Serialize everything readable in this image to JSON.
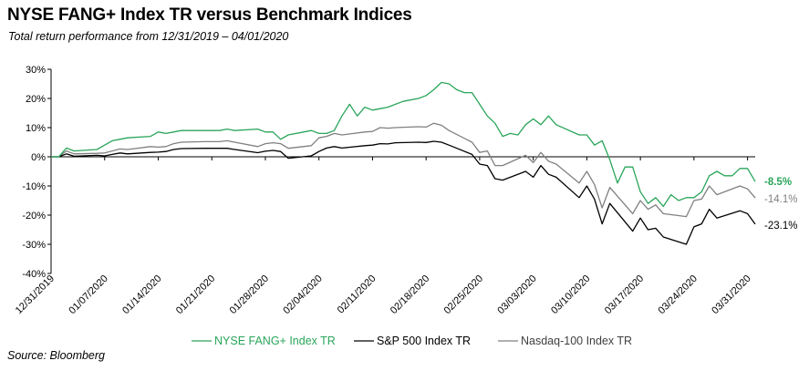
{
  "title": "NYSE FANG+ Index TR versus Benchmark Indices",
  "subtitle": "Total return performance from 12/31/2019 – 04/01/2020",
  "source": "Source: Bloomberg",
  "colors": {
    "fang": "#2aa55a",
    "sp500": "#000000",
    "nasdaq": "#808080",
    "axis": "#000000"
  },
  "chart_data": {
    "type": "line",
    "ylim": [
      -40,
      30
    ],
    "yticks": [
      -40,
      -30,
      -20,
      -10,
      0,
      10,
      20,
      30
    ],
    "ytick_labels": [
      "-40%",
      "-30%",
      "-20%",
      "-10%",
      "0%",
      "10%",
      "20%",
      "30%"
    ],
    "x_range": [
      "12/31/2019",
      "04/01/2020"
    ],
    "xtick_labels": [
      "12/31/2019",
      "01/07/2020",
      "01/14/2020",
      "01/21/2020",
      "01/28/2020",
      "02/04/2020",
      "02/11/2020",
      "02/18/2020",
      "02/25/2020",
      "03/03/2020",
      "03/10/2020",
      "03/17/2020",
      "03/24/2020",
      "03/31/2020"
    ],
    "series": [
      {
        "name": "NYSE FANG+ Index TR",
        "color": "#2aa55a",
        "end_label": "-8.5%",
        "points": [
          [
            "12/31/2019",
            0
          ],
          [
            "01/01/2020",
            0
          ],
          [
            "01/02/2020",
            3
          ],
          [
            "01/03/2020",
            2
          ],
          [
            "01/06/2020",
            2.5
          ],
          [
            "01/07/2020",
            4
          ],
          [
            "01/08/2020",
            5.5
          ],
          [
            "01/09/2020",
            6
          ],
          [
            "01/10/2020",
            6.5
          ],
          [
            "01/13/2020",
            7
          ],
          [
            "01/14/2020",
            8.5
          ],
          [
            "01/15/2020",
            8
          ],
          [
            "01/16/2020",
            8.5
          ],
          [
            "01/17/2020",
            9
          ],
          [
            "01/20/2020",
            9
          ],
          [
            "01/21/2020",
            9
          ],
          [
            "01/22/2020",
            9
          ],
          [
            "01/23/2020",
            9.5
          ],
          [
            "01/24/2020",
            9
          ],
          [
            "01/27/2020",
            9.5
          ],
          [
            "01/28/2020",
            8.5
          ],
          [
            "01/29/2020",
            8.5
          ],
          [
            "01/30/2020",
            6
          ],
          [
            "01/31/2020",
            7.5
          ],
          [
            "02/03/2020",
            9
          ],
          [
            "02/04/2020",
            8
          ],
          [
            "02/05/2020",
            8
          ],
          [
            "02/06/2020",
            9
          ],
          [
            "02/07/2020",
            14
          ],
          [
            "02/08/2020",
            18
          ],
          [
            "02/09/2020",
            14
          ],
          [
            "02/10/2020",
            17
          ],
          [
            "02/11/2020",
            16
          ],
          [
            "02/12/2020",
            16.5
          ],
          [
            "02/13/2020",
            17
          ],
          [
            "02/14/2020",
            18
          ],
          [
            "02/15/2020",
            19
          ],
          [
            "02/17/2020",
            20
          ],
          [
            "02/18/2020",
            21
          ],
          [
            "02/19/2020",
            23
          ],
          [
            "02/20/2020",
            25.5
          ],
          [
            "02/21/2020",
            25
          ],
          [
            "02/22/2020",
            23
          ],
          [
            "02/23/2020",
            22
          ],
          [
            "02/24/2020",
            22
          ],
          [
            "02/25/2020",
            18
          ],
          [
            "02/26/2020",
            14
          ],
          [
            "02/27/2020",
            11.5
          ],
          [
            "02/28/2020",
            7
          ],
          [
            "02/29/2020",
            8
          ],
          [
            "03/01/2020",
            7.5
          ],
          [
            "03/02/2020",
            11
          ],
          [
            "03/03/2020",
            13
          ],
          [
            "03/04/2020",
            11
          ],
          [
            "03/05/2020",
            14
          ],
          [
            "03/06/2020",
            11
          ],
          [
            "03/09/2020",
            7.5
          ],
          [
            "03/10/2020",
            7.5
          ],
          [
            "03/11/2020",
            4
          ],
          [
            "03/12/2020",
            5.5
          ],
          [
            "03/13/2020",
            -1
          ],
          [
            "03/14/2020",
            -9
          ],
          [
            "03/15/2020",
            -3.5
          ],
          [
            "03/16/2020",
            -3.5
          ],
          [
            "03/17/2020",
            -12
          ],
          [
            "03/18/2020",
            -16
          ],
          [
            "03/19/2020",
            -14
          ],
          [
            "03/20/2020",
            -17
          ],
          [
            "03/21/2020",
            -13
          ],
          [
            "03/22/2020",
            -15
          ],
          [
            "03/23/2020",
            -14
          ],
          [
            "03/24/2020",
            -14
          ],
          [
            "03/25/2020",
            -12
          ],
          [
            "03/26/2020",
            -6.5
          ],
          [
            "03/27/2020",
            -5
          ],
          [
            "03/28/2020",
            -6.5
          ],
          [
            "03/29/2020",
            -6.5
          ],
          [
            "03/30/2020",
            -4
          ],
          [
            "03/31/2020",
            -4
          ],
          [
            "04/01/2020",
            -8.5
          ]
        ]
      },
      {
        "name": "S&P 500 Index TR",
        "color": "#000000",
        "end_label": "-23.1%",
        "points": [
          [
            "12/31/2019",
            0
          ],
          [
            "01/01/2020",
            0
          ],
          [
            "01/02/2020",
            1
          ],
          [
            "01/03/2020",
            0.2
          ],
          [
            "01/06/2020",
            0.5
          ],
          [
            "01/07/2020",
            0.3
          ],
          [
            "01/08/2020",
            0.8
          ],
          [
            "01/09/2020",
            1.3
          ],
          [
            "01/10/2020",
            1
          ],
          [
            "01/13/2020",
            1.5
          ],
          [
            "01/14/2020",
            1.6
          ],
          [
            "01/15/2020",
            1.8
          ],
          [
            "01/16/2020",
            2.5
          ],
          [
            "01/17/2020",
            2.8
          ],
          [
            "01/20/2020",
            2.9
          ],
          [
            "01/21/2020",
            2.9
          ],
          [
            "01/22/2020",
            2.9
          ],
          [
            "01/23/2020",
            2.9
          ],
          [
            "01/24/2020",
            2.5
          ],
          [
            "01/27/2020",
            1.4
          ],
          [
            "01/28/2020",
            1.9
          ],
          [
            "01/29/2020",
            2.2
          ],
          [
            "01/30/2020",
            1.8
          ],
          [
            "01/31/2020",
            -0.5
          ],
          [
            "02/03/2020",
            0.3
          ],
          [
            "02/04/2020",
            1.8
          ],
          [
            "02/05/2020",
            3
          ],
          [
            "02/06/2020",
            3.5
          ],
          [
            "02/07/2020",
            3
          ],
          [
            "02/10/2020",
            3.8
          ],
          [
            "02/11/2020",
            4
          ],
          [
            "02/12/2020",
            4.5
          ],
          [
            "02/13/2020",
            4.4
          ],
          [
            "02/14/2020",
            4.8
          ],
          [
            "02/17/2020",
            5
          ],
          [
            "02/18/2020",
            4.9
          ],
          [
            "02/19/2020",
            5.3
          ],
          [
            "02/20/2020",
            5
          ],
          [
            "02/21/2020",
            4
          ],
          [
            "02/24/2020",
            0.8
          ],
          [
            "02/25/2020",
            -2.5
          ],
          [
            "02/26/2020",
            -3
          ],
          [
            "02/27/2020",
            -7.5
          ],
          [
            "02/28/2020",
            -8
          ],
          [
            "03/02/2020",
            -5
          ],
          [
            "03/03/2020",
            -7
          ],
          [
            "03/04/2020",
            -3
          ],
          [
            "03/05/2020",
            -6
          ],
          [
            "03/06/2020",
            -7
          ],
          [
            "03/09/2020",
            -14
          ],
          [
            "03/10/2020",
            -10
          ],
          [
            "03/11/2020",
            -14.5
          ],
          [
            "03/12/2020",
            -23
          ],
          [
            "03/13/2020",
            -16
          ],
          [
            "03/16/2020",
            -25.5
          ],
          [
            "03/17/2020",
            -21
          ],
          [
            "03/18/2020",
            -25
          ],
          [
            "03/19/2020",
            -24.5
          ],
          [
            "03/20/2020",
            -27.5
          ],
          [
            "03/23/2020",
            -30
          ],
          [
            "03/24/2020",
            -24
          ],
          [
            "03/25/2020",
            -23
          ],
          [
            "03/26/2020",
            -18
          ],
          [
            "03/27/2020",
            -21
          ],
          [
            "03/30/2020",
            -18.5
          ],
          [
            "03/31/2020",
            -19.5
          ],
          [
            "04/01/2020",
            -23.1
          ]
        ]
      },
      {
        "name": "Nasdaq-100 Index TR",
        "color": "#808080",
        "end_label": "-14.1%",
        "points": [
          [
            "12/31/2019",
            0
          ],
          [
            "01/01/2020",
            0
          ],
          [
            "01/02/2020",
            2
          ],
          [
            "01/03/2020",
            1
          ],
          [
            "01/06/2020",
            1.2
          ],
          [
            "01/07/2020",
            1.3
          ],
          [
            "01/08/2020",
            2
          ],
          [
            "01/09/2020",
            2.7
          ],
          [
            "01/10/2020",
            2.5
          ],
          [
            "01/13/2020",
            3.5
          ],
          [
            "01/14/2020",
            3.3
          ],
          [
            "01/15/2020",
            3.5
          ],
          [
            "01/16/2020",
            4.5
          ],
          [
            "01/17/2020",
            5
          ],
          [
            "01/20/2020",
            5.2
          ],
          [
            "01/21/2020",
            5.2
          ],
          [
            "01/22/2020",
            5.2
          ],
          [
            "01/23/2020",
            5.5
          ],
          [
            "01/24/2020",
            5
          ],
          [
            "01/27/2020",
            3.5
          ],
          [
            "01/28/2020",
            4.5
          ],
          [
            "01/29/2020",
            4.8
          ],
          [
            "01/30/2020",
            4.5
          ],
          [
            "01/31/2020",
            2.9
          ],
          [
            "02/03/2020",
            3.8
          ],
          [
            "02/04/2020",
            6.5
          ],
          [
            "02/05/2020",
            7
          ],
          [
            "02/06/2020",
            8
          ],
          [
            "02/07/2020",
            7.5
          ],
          [
            "02/10/2020",
            8.5
          ],
          [
            "02/11/2020",
            8.7
          ],
          [
            "02/12/2020",
            10
          ],
          [
            "02/13/2020",
            9.8
          ],
          [
            "02/14/2020",
            10
          ],
          [
            "02/17/2020",
            10.3
          ],
          [
            "02/18/2020",
            10.2
          ],
          [
            "02/19/2020",
            11.5
          ],
          [
            "02/20/2020",
            10.8
          ],
          [
            "02/21/2020",
            9
          ],
          [
            "02/24/2020",
            5
          ],
          [
            "02/25/2020",
            1.5
          ],
          [
            "02/26/2020",
            2
          ],
          [
            "02/27/2020",
            -3
          ],
          [
            "02/28/2020",
            -3
          ],
          [
            "03/02/2020",
            0.5
          ],
          [
            "03/03/2020",
            -2
          ],
          [
            "03/04/2020",
            1.5
          ],
          [
            "03/05/2020",
            -1.5
          ],
          [
            "03/06/2020",
            -2.5
          ],
          [
            "03/09/2020",
            -9
          ],
          [
            "03/10/2020",
            -5
          ],
          [
            "03/11/2020",
            -9.5
          ],
          [
            "03/12/2020",
            -17.5
          ],
          [
            "03/13/2020",
            -10.5
          ],
          [
            "03/16/2020",
            -19.5
          ],
          [
            "03/17/2020",
            -15
          ],
          [
            "03/18/2020",
            -18
          ],
          [
            "03/19/2020",
            -16.5
          ],
          [
            "03/20/2020",
            -19.5
          ],
          [
            "03/23/2020",
            -20.5
          ],
          [
            "03/24/2020",
            -15
          ],
          [
            "03/25/2020",
            -14.5
          ],
          [
            "03/26/2020",
            -10
          ],
          [
            "03/27/2020",
            -13
          ],
          [
            "03/30/2020",
            -10
          ],
          [
            "03/31/2020",
            -11
          ],
          [
            "04/01/2020",
            -14.1
          ]
        ]
      }
    ]
  }
}
